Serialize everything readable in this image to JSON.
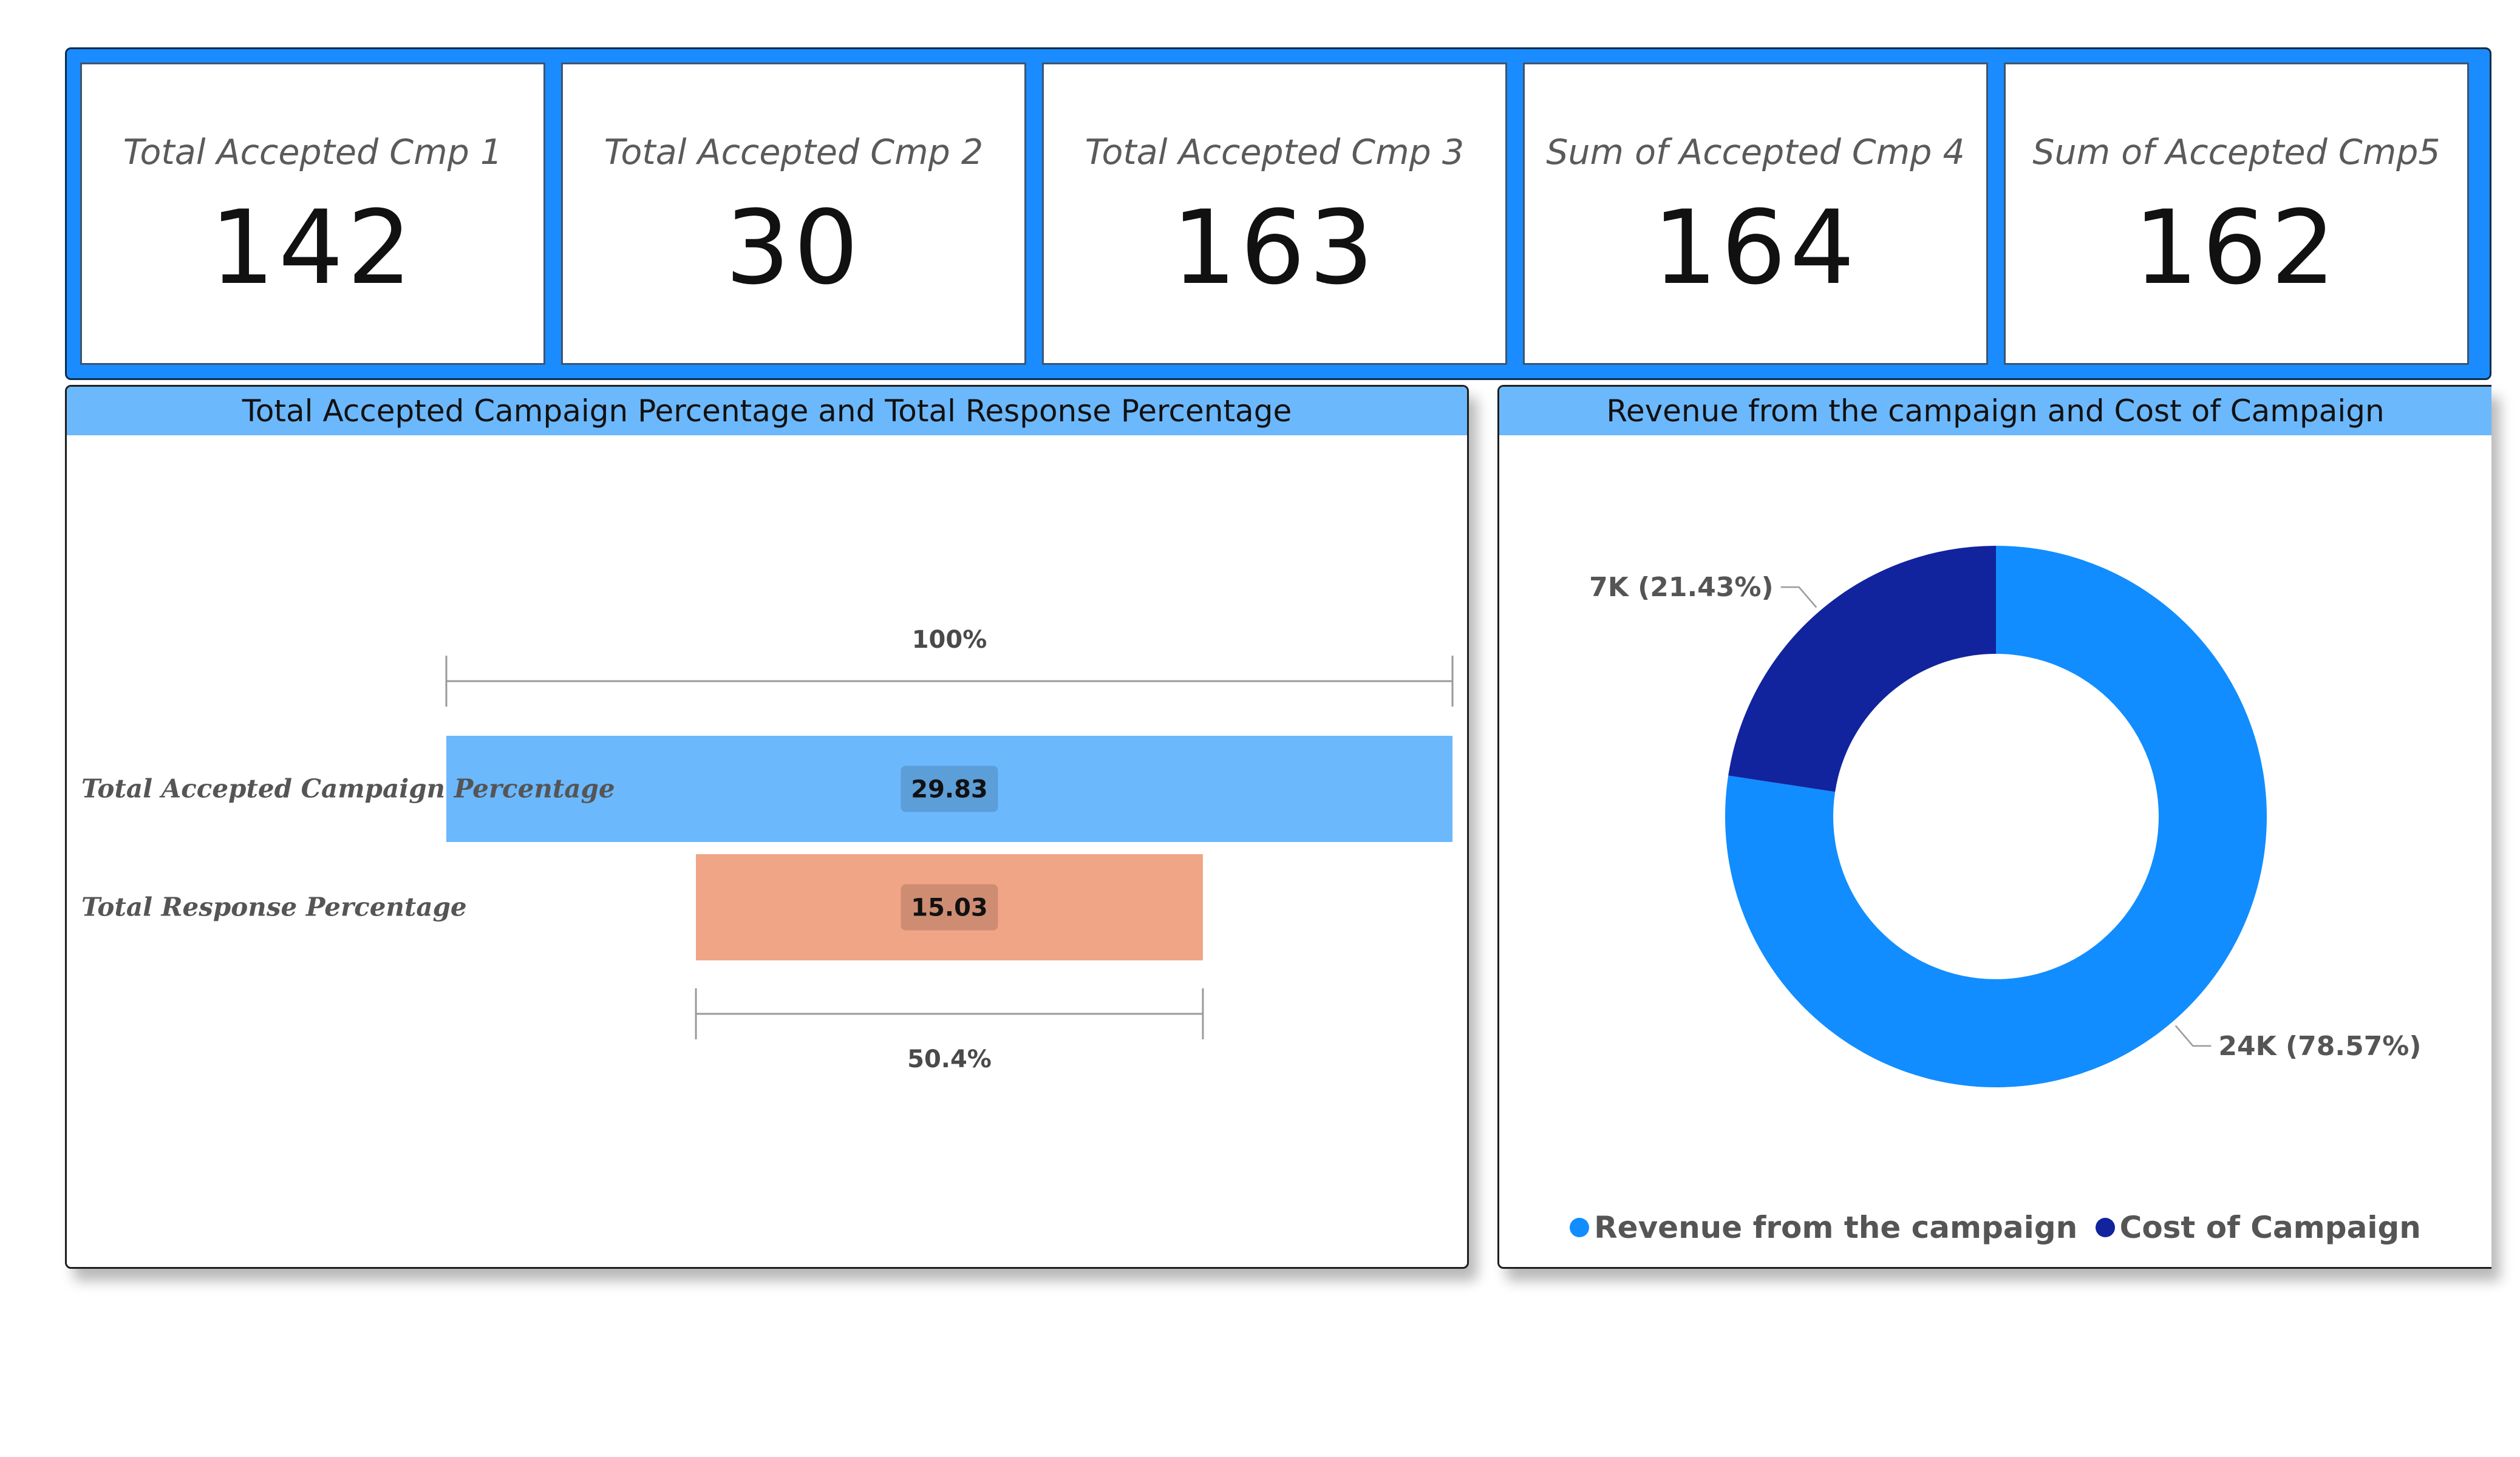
{
  "kpis": [
    {
      "label": "Total Accepted Cmp 1",
      "value": "142"
    },
    {
      "label": "Total Accepted Cmp 2",
      "value": "30"
    },
    {
      "label": "Total Accepted Cmp 3",
      "value": "163"
    },
    {
      "label": "Sum of Accepted Cmp 4",
      "value": "164"
    },
    {
      "label": "Sum of Accepted Cmp5",
      "value": "162"
    }
  ],
  "funnel": {
    "title": "Total Accepted Campaign Percentage and Total Response Percentage"
  },
  "donut": {
    "title": "Revenue from the campaign and Cost of Campaign"
  },
  "colors": {
    "accent": "#1a8cff",
    "funnel_bar_1": "#6cb8fc",
    "funnel_bar_2": "#f0a586",
    "donut_revenue": "#118dff",
    "donut_cost": "#12239e"
  },
  "chart_data": [
    {
      "type": "bar",
      "subtype": "funnel",
      "title": "Total Accepted Campaign Percentage and Total Response Percentage",
      "categories": [
        "Total Accepted Campaign Percentage",
        "Total Response Percentage"
      ],
      "values": [
        29.83,
        15.03
      ],
      "value_labels": [
        "29.83",
        "15.03"
      ],
      "top_annotation": "100%",
      "bottom_annotation": "50.4%",
      "conversion_rate": 50.4
    },
    {
      "type": "pie",
      "subtype": "donut",
      "title": "Revenue from the campaign and Cost of Campaign",
      "categories": [
        "Revenue from the campaign",
        "Cost of Campaign"
      ],
      "values": [
        24,
        7
      ],
      "percentages": [
        78.57,
        21.43
      ],
      "slice_labels": [
        "24K (78.57%)",
        "7K (21.43%)"
      ],
      "legend": "bottom-center"
    }
  ]
}
